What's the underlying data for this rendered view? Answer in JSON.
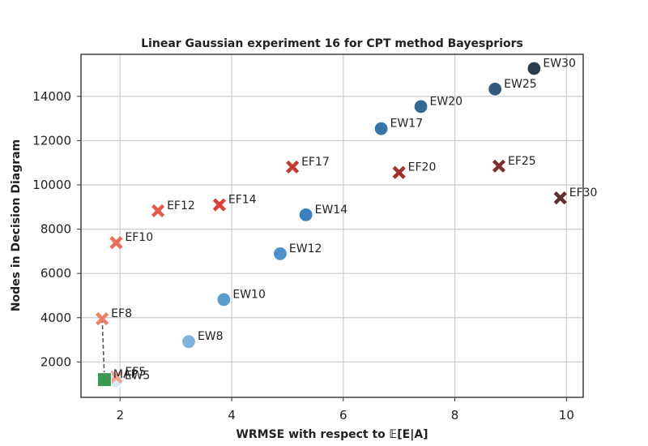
{
  "chart_data": {
    "type": "scatter",
    "title": "Linear Gaussian experiment 16 for CPT method Bayespriors",
    "xlabel": "WRMSE with respect to 𝔼[E|A]",
    "ylabel": "Nodes in Decision Diagram",
    "xlim": [
      1.3,
      10.3
    ],
    "ylim": [
      400,
      15900
    ],
    "xticks": [
      2,
      4,
      6,
      8,
      10
    ],
    "yticks": [
      2000,
      4000,
      6000,
      8000,
      10000,
      12000,
      14000
    ],
    "grid": true,
    "series": [
      {
        "group": "EW",
        "marker": "circle",
        "points": [
          {
            "label": "EW5",
            "x": 1.92,
            "y": 1150,
            "color": "#d9e8f5"
          },
          {
            "label": "EW8",
            "x": 3.23,
            "y": 2920,
            "color": "#7fb3db"
          },
          {
            "label": "EW10",
            "x": 3.86,
            "y": 4820,
            "color": "#5b9ccf"
          },
          {
            "label": "EW12",
            "x": 4.87,
            "y": 6890,
            "color": "#4a92c8"
          },
          {
            "label": "EW14",
            "x": 5.33,
            "y": 8650,
            "color": "#3a80bc"
          },
          {
            "label": "EW17",
            "x": 6.68,
            "y": 12540,
            "color": "#3775a8"
          },
          {
            "label": "EW20",
            "x": 7.39,
            "y": 13540,
            "color": "#376a92"
          },
          {
            "label": "EW25",
            "x": 8.72,
            "y": 14330,
            "color": "#34597a"
          },
          {
            "label": "EW30",
            "x": 9.42,
            "y": 15260,
            "color": "#2e3d4d"
          }
        ]
      },
      {
        "group": "EF",
        "marker": "x",
        "points": [
          {
            "label": "EF5",
            "x": 1.93,
            "y": 1320,
            "color": "#f2a18e"
          },
          {
            "label": "EF8",
            "x": 1.68,
            "y": 3950,
            "color": "#ee7d6c"
          },
          {
            "label": "EF10",
            "x": 1.93,
            "y": 7390,
            "color": "#ec6a58"
          },
          {
            "label": "EF12",
            "x": 2.68,
            "y": 8830,
            "color": "#e5584a"
          },
          {
            "label": "EF14",
            "x": 3.78,
            "y": 9100,
            "color": "#dc3d36"
          },
          {
            "label": "EF17",
            "x": 5.09,
            "y": 10810,
            "color": "#c53a30"
          },
          {
            "label": "EF20",
            "x": 7.0,
            "y": 10560,
            "color": "#a0332c"
          },
          {
            "label": "EF25",
            "x": 8.79,
            "y": 10850,
            "color": "#7e3130"
          },
          {
            "label": "EF30",
            "x": 9.89,
            "y": 9410,
            "color": "#5e2f2f"
          }
        ]
      },
      {
        "group": "MAP",
        "marker": "square",
        "points": [
          {
            "label": "MAP",
            "x": 1.72,
            "y": 1200,
            "color": "#3a9a50"
          }
        ]
      }
    ],
    "pareto_front": [
      [
        1.68,
        3950
      ],
      [
        1.72,
        1200
      ]
    ]
  }
}
